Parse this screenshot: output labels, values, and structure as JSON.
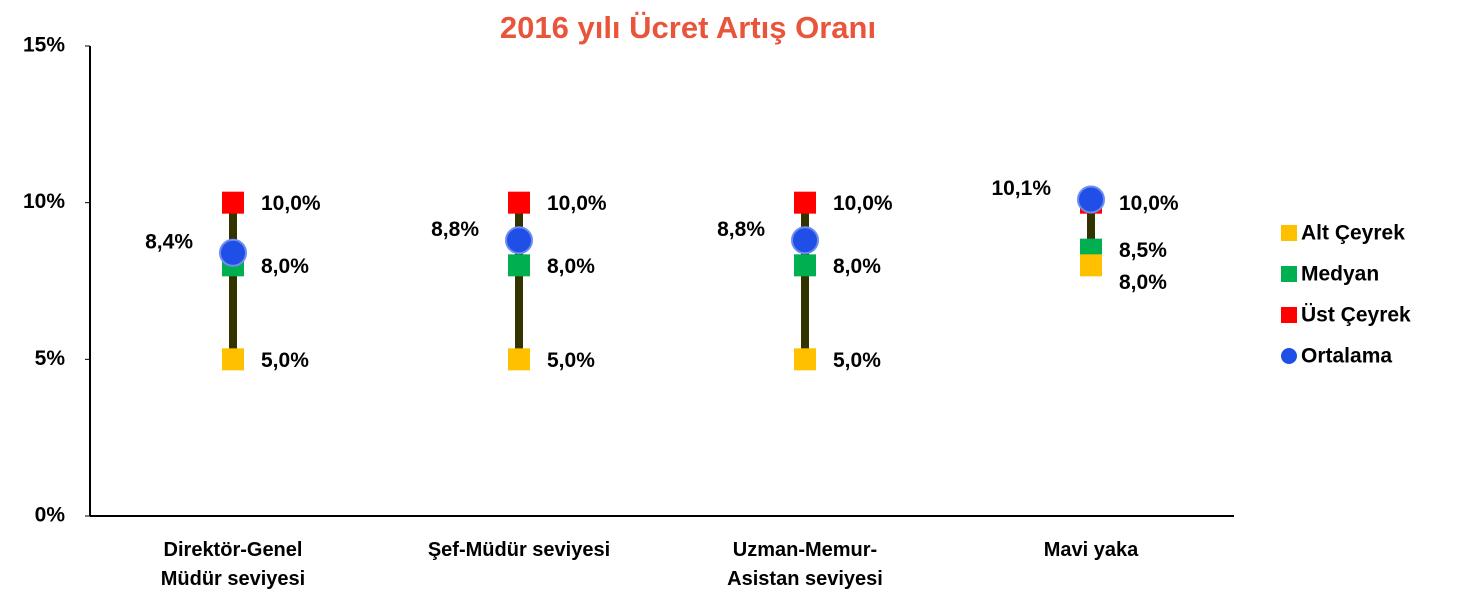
{
  "chart_data": {
    "type": "range",
    "title": "2016 yılı Ücret Artış Oranı",
    "categories": [
      "Direktör-Genel\nMüdür seviyesi",
      "Şef-Müdür seviyesi",
      "Uzman-Memur-\nAsistan seviyesi",
      "Mavi yaka"
    ],
    "series": [
      {
        "name": "Alt Çeyrek",
        "color": "#ffc000",
        "values": [
          5.0,
          5.0,
          5.0,
          8.0
        ],
        "value_labels": [
          "5,0%",
          "5,0%",
          "5,0%",
          "8,0%"
        ]
      },
      {
        "name": "Medyan",
        "color": "#00b050",
        "values": [
          8.0,
          8.0,
          8.0,
          8.5
        ],
        "value_labels": [
          "8,0%",
          "8,0%",
          "8,0%",
          "8,5%"
        ]
      },
      {
        "name": "Üst Çeyrek",
        "color": "#ff0000",
        "values": [
          10.0,
          10.0,
          10.0,
          10.0
        ],
        "value_labels": [
          "10,0%",
          "10,0%",
          "10,0%",
          "10,0%"
        ]
      },
      {
        "name": "Ortalama",
        "color": "#1f4fe6",
        "values": [
          8.4,
          8.8,
          8.8,
          10.1
        ],
        "value_labels": [
          "8,4%",
          "8,8%",
          "8,8%",
          "10,1%"
        ]
      }
    ],
    "range_color": "#333300",
    "ylim": [
      0,
      15
    ],
    "yticks": [
      {
        "value": 0,
        "label": "0%"
      },
      {
        "value": 5,
        "label": "5%"
      },
      {
        "value": 10,
        "label": "10%"
      },
      {
        "value": 15,
        "label": "15%"
      }
    ],
    "grid": false,
    "legend": "right"
  }
}
